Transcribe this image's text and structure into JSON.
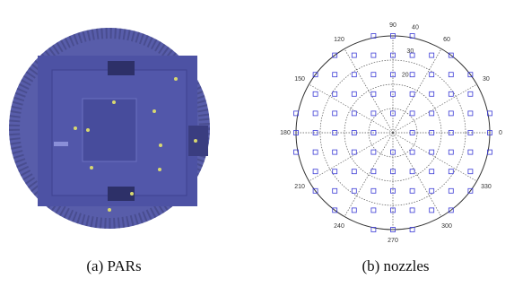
{
  "chart_data": {
    "type": "polar-scatter",
    "angle_ticks": [
      0,
      30,
      60,
      90,
      120,
      150,
      180,
      210,
      240,
      270,
      300,
      330
    ],
    "rlim": [
      0,
      40
    ],
    "rticks": [
      20,
      30,
      40
    ],
    "color": "#3b3bd6",
    "x": [
      -8,
      0,
      8,
      -24,
      -16,
      -8,
      0,
      8,
      16,
      24,
      -32,
      -24,
      -16,
      -8,
      0,
      8,
      16,
      24,
      32,
      -32,
      -24,
      -16,
      -8,
      0,
      8,
      16,
      24,
      32,
      -40,
      -32,
      -24,
      -16,
      -8,
      0,
      8,
      16,
      24,
      32,
      40,
      -40,
      -32,
      -24,
      -16,
      -8,
      8,
      16,
      24,
      32,
      40,
      -40,
      -32,
      -24,
      -16,
      -8,
      0,
      8,
      16,
      24,
      32,
      40,
      -32,
      -24,
      -16,
      -8,
      0,
      8,
      16,
      24,
      32,
      -32,
      -24,
      -16,
      -8,
      0,
      8,
      16,
      24,
      32,
      -24,
      -16,
      -8,
      0,
      8,
      16,
      24,
      -8,
      0,
      8
    ],
    "y": [
      40,
      40,
      40,
      32,
      32,
      32,
      32,
      32,
      32,
      32,
      24,
      24,
      24,
      24,
      24,
      24,
      24,
      24,
      24,
      16,
      16,
      16,
      16,
      16,
      16,
      16,
      16,
      16,
      8,
      8,
      8,
      8,
      8,
      8,
      8,
      8,
      8,
      8,
      8,
      0,
      0,
      0,
      0,
      0,
      0,
      0,
      0,
      0,
      0,
      -8,
      -8,
      -8,
      -8,
      -8,
      -8,
      -8,
      -8,
      -8,
      -8,
      -8,
      -16,
      -16,
      -16,
      -16,
      -16,
      -16,
      -16,
      -16,
      -16,
      -24,
      -24,
      -24,
      -24,
      -24,
      -24,
      -24,
      -24,
      -24,
      -32,
      -32,
      -32,
      -32,
      -32,
      -32,
      -32,
      -40,
      -40,
      -40
    ]
  },
  "captions": [
    "(a) PARs",
    "(b)  nozzles"
  ]
}
